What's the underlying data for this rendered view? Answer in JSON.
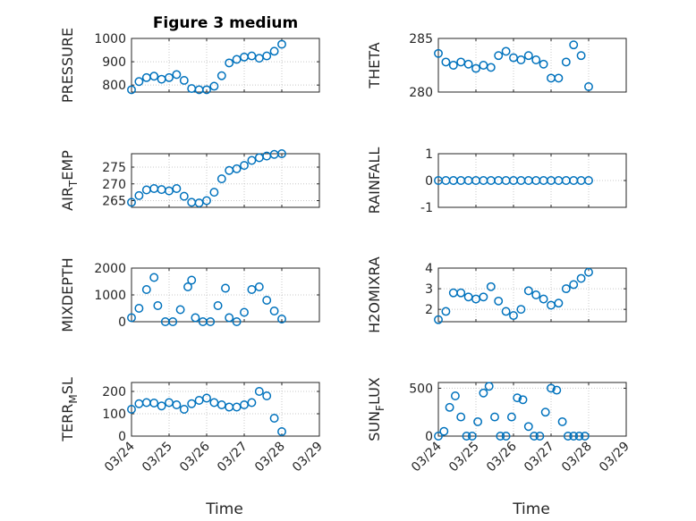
{
  "chart_data": [
    {
      "type": "scatter",
      "title": "Figure 3 medium",
      "ylabel_main": "PRESSURE",
      "ylabel_sub": "",
      "ylim": [
        770,
        1000
      ],
      "yticks": [
        800,
        900,
        1000
      ],
      "ytick_labels": [
        "800",
        "900",
        "1000"
      ],
      "x": [
        0.0,
        0.2,
        0.4,
        0.6,
        0.8,
        1.0,
        1.2,
        1.4,
        1.6,
        1.8,
        2.0,
        2.2,
        2.4,
        2.6,
        2.8,
        3.0,
        3.2,
        3.4,
        3.6,
        3.8,
        4.0
      ],
      "y": [
        780,
        815,
        832,
        838,
        825,
        832,
        845,
        820,
        785,
        780,
        780,
        795,
        840,
        895,
        910,
        920,
        925,
        915,
        925,
        945,
        975
      ],
      "grid": true
    },
    {
      "type": "scatter",
      "title": "",
      "ylabel_main": "THETA",
      "ylabel_sub": "",
      "ylim": [
        280,
        285
      ],
      "yticks": [
        280,
        285
      ],
      "ytick_labels": [
        "280",
        "285"
      ],
      "x": [
        0.0,
        0.2,
        0.4,
        0.6,
        0.8,
        1.0,
        1.2,
        1.4,
        1.6,
        1.8,
        2.0,
        2.2,
        2.4,
        2.6,
        2.8,
        3.0,
        3.2,
        3.4,
        3.6,
        3.8,
        4.0
      ],
      "y": [
        283.6,
        282.8,
        282.5,
        282.8,
        282.6,
        282.2,
        282.5,
        282.3,
        283.4,
        283.8,
        283.2,
        283.0,
        283.4,
        283.0,
        282.6,
        281.3,
        281.3,
        282.8,
        284.4,
        283.4,
        280.5
      ],
      "grid": true
    },
    {
      "type": "scatter",
      "title": "",
      "ylabel_main": "AIR",
      "ylabel_sub": "T",
      "ylabel_tail": "EMP",
      "ylim": [
        263,
        279
      ],
      "yticks": [
        265,
        270,
        275
      ],
      "ytick_labels": [
        "265",
        "270",
        "275"
      ],
      "x": [
        0.0,
        0.2,
        0.4,
        0.6,
        0.8,
        1.0,
        1.2,
        1.4,
        1.6,
        1.8,
        2.0,
        2.2,
        2.4,
        2.6,
        2.8,
        3.0,
        3.2,
        3.4,
        3.6,
        3.8,
        4.0
      ],
      "y": [
        264.5,
        266.5,
        268.2,
        268.6,
        268.3,
        267.9,
        268.6,
        266.3,
        264.5,
        264.3,
        265.0,
        267.5,
        271.5,
        274.0,
        274.5,
        275.5,
        277.0,
        277.8,
        278.3,
        278.8,
        279.0
      ],
      "grid": true
    },
    {
      "type": "scatter",
      "title": "",
      "ylabel_main": "RAINFALL",
      "ylabel_sub": "",
      "ylim": [
        -1,
        1
      ],
      "yticks": [
        -1,
        0,
        1
      ],
      "ytick_labels": [
        "-1",
        "0",
        "1"
      ],
      "x": [
        0.0,
        0.2,
        0.4,
        0.6,
        0.8,
        1.0,
        1.2,
        1.4,
        1.6,
        1.8,
        2.0,
        2.2,
        2.4,
        2.6,
        2.8,
        3.0,
        3.2,
        3.4,
        3.6,
        3.8,
        4.0
      ],
      "y": [
        0,
        0,
        0,
        0,
        0,
        0,
        0,
        0,
        0,
        0,
        0,
        0,
        0,
        0,
        0,
        0,
        0,
        0,
        0,
        0,
        0
      ],
      "grid": true
    },
    {
      "type": "scatter",
      "title": "",
      "ylabel_main": "MIXDEPTH",
      "ylabel_sub": "",
      "ylim": [
        0,
        2000
      ],
      "yticks": [
        0,
        1000,
        2000
      ],
      "ytick_labels": [
        "0",
        "1000",
        "2000"
      ],
      "x": [
        0.0,
        0.2,
        0.4,
        0.6,
        0.7,
        0.9,
        1.1,
        1.3,
        1.5,
        1.6,
        1.7,
        1.9,
        2.1,
        2.3,
        2.5,
        2.6,
        2.8,
        3.0,
        3.2,
        3.4,
        3.6,
        3.8,
        4.0
      ],
      "y": [
        150,
        500,
        1200,
        1650,
        600,
        0,
        0,
        450,
        1300,
        1550,
        150,
        0,
        0,
        600,
        1250,
        150,
        0,
        350,
        1200,
        1300,
        800,
        400,
        100
      ],
      "grid": true
    },
    {
      "type": "scatter",
      "title": "",
      "ylabel_main": "H2OMIXRA",
      "ylabel_sub": "",
      "ylim": [
        1.4,
        4
      ],
      "yticks": [
        2,
        3,
        4
      ],
      "ytick_labels": [
        "2",
        "3",
        "4"
      ],
      "x": [
        0.0,
        0.2,
        0.4,
        0.6,
        0.8,
        1.0,
        1.2,
        1.4,
        1.6,
        1.8,
        2.0,
        2.2,
        2.4,
        2.6,
        2.8,
        3.0,
        3.2,
        3.4,
        3.6,
        3.8,
        4.0
      ],
      "y": [
        1.5,
        1.9,
        2.8,
        2.8,
        2.6,
        2.5,
        2.6,
        3.1,
        2.4,
        1.9,
        1.7,
        2.0,
        2.9,
        2.7,
        2.5,
        2.2,
        2.3,
        3.0,
        3.2,
        3.5,
        3.8
      ],
      "grid": true
    },
    {
      "type": "scatter",
      "title": "",
      "ylabel_main": "TERR",
      "ylabel_sub": "M",
      "ylabel_tail": "SL",
      "ylim": [
        0,
        240
      ],
      "yticks": [
        0,
        100,
        200
      ],
      "ytick_labels": [
        "0",
        "100",
        "200"
      ],
      "x": [
        0.0,
        0.2,
        0.4,
        0.6,
        0.8,
        1.0,
        1.2,
        1.4,
        1.6,
        1.8,
        2.0,
        2.2,
        2.4,
        2.6,
        2.8,
        3.0,
        3.2,
        3.4,
        3.6,
        3.8,
        4.0
      ],
      "y": [
        120,
        145,
        150,
        148,
        135,
        150,
        140,
        120,
        145,
        160,
        170,
        150,
        140,
        130,
        130,
        140,
        150,
        200,
        180,
        80,
        20
      ],
      "grid": true
    },
    {
      "type": "scatter",
      "title": "",
      "ylabel_main": "SUN",
      "ylabel_sub": "F",
      "ylabel_tail": "LUX",
      "ylim": [
        0,
        560
      ],
      "yticks": [
        0,
        500
      ],
      "ytick_labels": [
        "0",
        "500"
      ],
      "x": [
        0.0,
        0.15,
        0.3,
        0.45,
        0.6,
        0.75,
        0.9,
        1.05,
        1.2,
        1.35,
        1.5,
        1.65,
        1.8,
        1.95,
        2.1,
        2.25,
        2.4,
        2.55,
        2.7,
        2.85,
        3.0,
        3.15,
        3.3,
        3.45,
        3.6,
        3.75,
        3.9
      ],
      "y": [
        0,
        50,
        300,
        420,
        200,
        0,
        0,
        150,
        450,
        520,
        200,
        0,
        0,
        200,
        400,
        380,
        100,
        0,
        0,
        250,
        500,
        480,
        150,
        0,
        0,
        0,
        0
      ],
      "grid": true
    }
  ],
  "shared_x": {
    "xlim": [
      0,
      5
    ],
    "xticks": [
      0,
      1,
      2,
      3,
      4,
      5
    ],
    "xtick_labels": [
      "03/24",
      "03/25",
      "03/26",
      "03/27",
      "03/28",
      "03/29"
    ],
    "xlabel": "Time"
  }
}
